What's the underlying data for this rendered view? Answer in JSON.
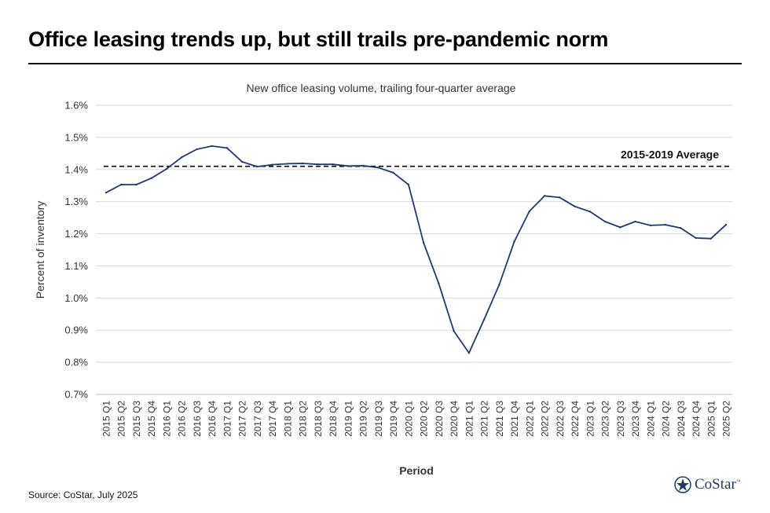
{
  "headline": "Office leasing trends up, but still trails pre-pandemic norm",
  "source": "Source: CoStar, July 2025",
  "logo": {
    "text": "CoStar",
    "tm": "™",
    "icon": "costar-star-icon",
    "color": "#1f3a5f"
  },
  "chart_data": {
    "type": "line",
    "title": "New office leasing volume, trailing four-quarter average",
    "xlabel": "Period",
    "ylabel": "Percent of inventory",
    "ylim": [
      0.7,
      1.6
    ],
    "yticks": [
      "0.7%",
      "0.8%",
      "0.9%",
      "1.0%",
      "1.1%",
      "1.2%",
      "1.3%",
      "1.4%",
      "1.5%",
      "1.6%"
    ],
    "grid": true,
    "categories": [
      "2015 Q1",
      "2015 Q2",
      "2015 Q3",
      "2015 Q4",
      "2016 Q1",
      "2016 Q2",
      "2016 Q3",
      "2016 Q4",
      "2017 Q1",
      "2017 Q2",
      "2017 Q3",
      "2017 Q4",
      "2018 Q1",
      "2018 Q2",
      "2018 Q3",
      "2018 Q4",
      "2019 Q1",
      "2019 Q2",
      "2019 Q3",
      "2019 Q4",
      "2020 Q1",
      "2020 Q2",
      "2020 Q3",
      "2020 Q4",
      "2021 Q1",
      "2021 Q2",
      "2021 Q3",
      "2021 Q4",
      "2022 Q1",
      "2022 Q2",
      "2022 Q3",
      "2022 Q4",
      "2023 Q1",
      "2023 Q2",
      "2023 Q3",
      "2023 Q4",
      "2024 Q1",
      "2024 Q2",
      "2024 Q3",
      "2024 Q4",
      "2025 Q1",
      "2025 Q2"
    ],
    "series": [
      {
        "color": "#1f3a6e",
        "values": [
          1.328,
          1.353,
          1.353,
          1.373,
          1.402,
          1.438,
          1.463,
          1.473,
          1.467,
          1.424,
          1.409,
          1.415,
          1.418,
          1.419,
          1.416,
          1.416,
          1.411,
          1.412,
          1.406,
          1.39,
          1.353,
          1.172,
          1.045,
          0.897,
          0.829,
          0.933,
          1.041,
          1.176,
          1.27,
          1.318,
          1.313,
          1.285,
          1.269,
          1.238,
          1.22,
          1.238,
          1.226,
          1.228,
          1.218,
          1.187,
          1.185,
          1.228
        ]
      }
    ],
    "reference_line": {
      "label": "2015-2019 Average",
      "value": 1.41,
      "style": "dashed",
      "color": "#000000"
    }
  }
}
